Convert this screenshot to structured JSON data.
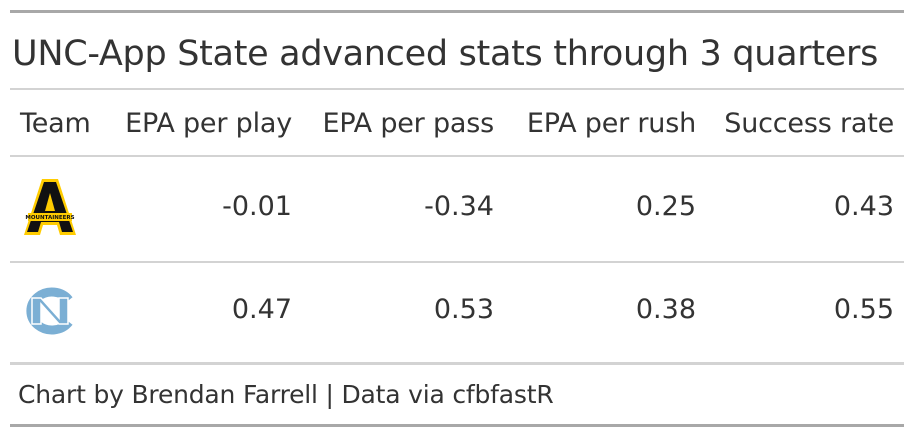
{
  "title": "UNC-App State advanced stats through 3 quarters",
  "columns": {
    "team": "Team",
    "epa_play": "EPA per play",
    "epa_pass": "EPA per pass",
    "epa_rush": "EPA per rush",
    "success": "Success rate"
  },
  "rows": [
    {
      "team_logo": "appalachian-state-logo",
      "logo_text": "MOUNTAINEERS",
      "epa_play": "-0.01",
      "epa_pass": "-0.34",
      "epa_rush": "0.25",
      "success": "0.43"
    },
    {
      "team_logo": "unc-logo",
      "epa_play": "0.47",
      "epa_pass": "0.53",
      "epa_rush": "0.38",
      "success": "0.55"
    }
  ],
  "source_note": "Chart by Brendan Farrell | Data via cfbfastR",
  "colors": {
    "app_state_black": "#111111",
    "app_state_gold": "#FFCC00",
    "unc_blue": "#7BAFD4",
    "rule_dark": "#a8a8a8",
    "rule_light": "#d3d3d3"
  }
}
